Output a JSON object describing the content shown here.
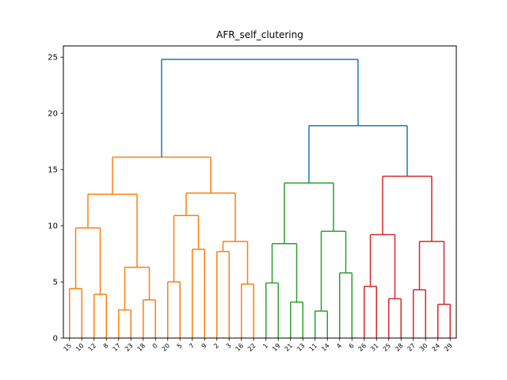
{
  "chart_data": {
    "type": "dendrogram",
    "title": "AFR_self_clutering",
    "ylim": [
      0,
      26
    ],
    "yticks": [
      0,
      5,
      10,
      15,
      20,
      25
    ],
    "leaf_order": [
      15,
      10,
      12,
      8,
      17,
      23,
      18,
      0,
      20,
      5,
      7,
      9,
      2,
      3,
      16,
      22,
      1,
      19,
      21,
      13,
      11,
      14,
      4,
      6,
      26,
      31,
      25,
      28,
      27,
      30,
      24,
      29
    ],
    "clusters": [
      {
        "name": "",
        "color": "#ff7f0e",
        "leaves": [
          15,
          10,
          12,
          8,
          17,
          23,
          18,
          0,
          20,
          5,
          7,
          9,
          2,
          3,
          16,
          22
        ]
      },
      {
        "name": "",
        "color": "#2ca02c",
        "leaves": [
          1,
          19,
          21,
          13,
          11,
          14,
          4,
          6
        ]
      },
      {
        "name": "",
        "color": "#d62728",
        "leaves": [
          26,
          31,
          25,
          28,
          27,
          30,
          24,
          29
        ]
      }
    ],
    "link_color_above_threshold": "#1f77b4",
    "merges": [
      {
        "left": 15,
        "right": 10,
        "height": 4.4
      },
      {
        "left": 12,
        "right": 8,
        "height": 3.9
      },
      {
        "left": 17,
        "right": 23,
        "height": 2.5
      },
      {
        "left": 18,
        "right": 0,
        "height": 3.4
      },
      {
        "left": 20,
        "right": 5,
        "height": 5.0
      },
      {
        "left": 7,
        "right": 9,
        "height": 7.9
      },
      {
        "left": 2,
        "right": 3,
        "height": 7.7
      },
      {
        "left": 16,
        "right": 22,
        "height": 4.8
      },
      {
        "left": 1,
        "right": 19,
        "height": 4.9
      },
      {
        "left": 21,
        "right": 13,
        "height": 3.2
      },
      {
        "left": 11,
        "right": 14,
        "height": 2.4
      },
      {
        "left": 4,
        "right": 6,
        "height": 5.8
      },
      {
        "left": 26,
        "right": 31,
        "height": 4.6
      },
      {
        "left": 25,
        "right": 28,
        "height": 3.5
      },
      {
        "left": 27,
        "right": 30,
        "height": 4.3
      },
      {
        "left": 24,
        "right": 29,
        "height": 3.0
      },
      {
        "left": [
          15,
          10
        ],
        "right": [
          12,
          8
        ],
        "height": 9.8
      },
      {
        "left": [
          17,
          23
        ],
        "right": [
          18,
          0
        ],
        "height": 6.3
      },
      {
        "left": [
          20,
          5
        ],
        "right": [
          7,
          9
        ],
        "height": 10.9
      },
      {
        "left": [
          2,
          3
        ],
        "right": [
          16,
          22
        ],
        "height": 8.6
      },
      {
        "left": [
          1,
          19
        ],
        "right": [
          21,
          13
        ],
        "height": 8.4
      },
      {
        "left": [
          11,
          14
        ],
        "right": [
          4,
          6
        ],
        "height": 9.5
      },
      {
        "left": [
          26,
          31
        ],
        "right": [
          25,
          28
        ],
        "height": 9.2
      },
      {
        "left": [
          27,
          30
        ],
        "right": [
          24,
          29
        ],
        "height": 8.6
      },
      {
        "left": [
          15,
          10,
          12,
          8
        ],
        "right": [
          17,
          23,
          18,
          0
        ],
        "height": 12.8
      },
      {
        "left": [
          20,
          5,
          7,
          9
        ],
        "right": [
          2,
          3,
          16,
          22
        ],
        "height": 12.9
      },
      {
        "left": [
          1,
          19,
          21,
          13
        ],
        "right": [
          11,
          14,
          4,
          6
        ],
        "height": 13.8
      },
      {
        "left": [
          26,
          31,
          25,
          28
        ],
        "right": [
          27,
          30,
          24,
          29
        ],
        "height": 14.4
      },
      {
        "left": [
          15,
          10,
          12,
          8,
          17,
          23,
          18,
          0
        ],
        "right": [
          20,
          5,
          7,
          9,
          2,
          3,
          16,
          22
        ],
        "height": 16.1
      },
      {
        "left": [
          1,
          19,
          21,
          13,
          11,
          14,
          4,
          6
        ],
        "right": [
          26,
          31,
          25,
          28,
          27,
          30,
          24,
          29
        ],
        "height": 18.9
      },
      {
        "left": "orange-cluster",
        "right": "green-red-cluster",
        "height": 24.8
      }
    ]
  }
}
